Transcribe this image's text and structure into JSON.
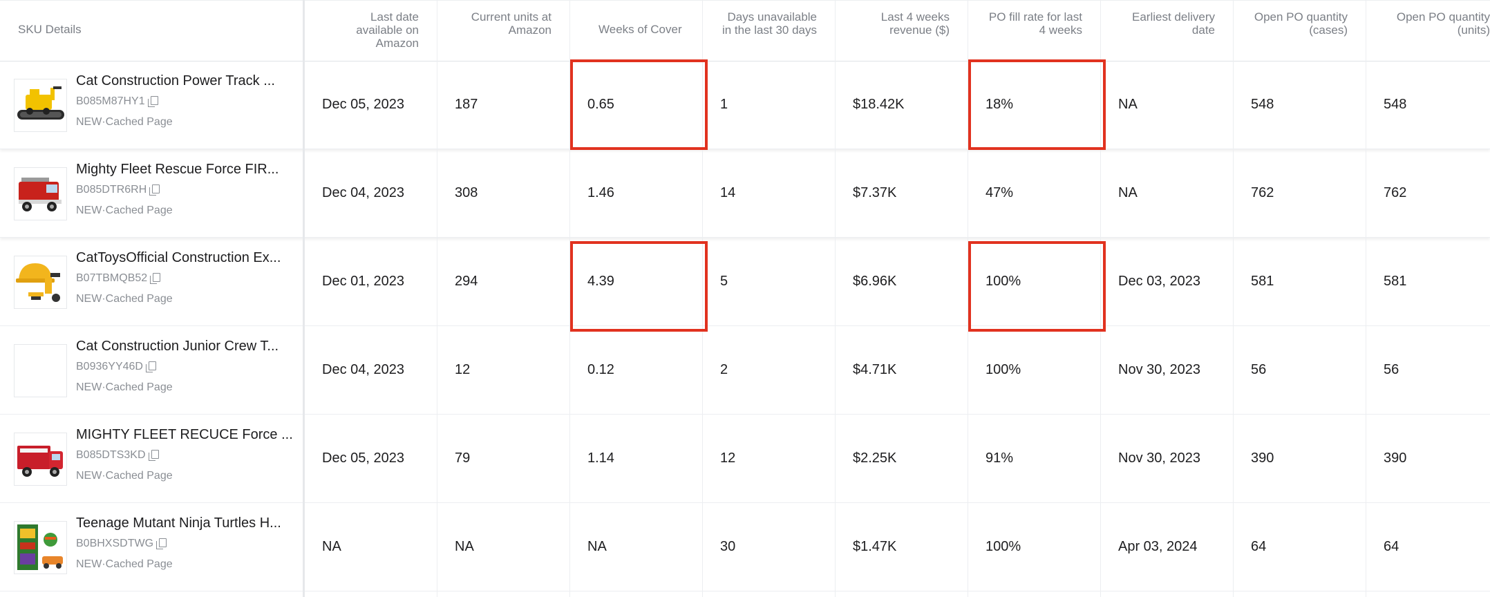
{
  "columns": [
    "SKU Details",
    "Last date available on Amazon",
    "Current units at Amazon",
    "Weeks of Cover",
    "Days unavailable in the last 30 days",
    "Last 4 weeks revenue ($)",
    "PO fill rate for last 4 weeks",
    "Earliest delivery date",
    "Open PO quantity (cases)",
    "Open PO quantity (units)"
  ],
  "rows": [
    {
      "title": "Cat Construction Power Track ...",
      "asin": "B085M87HY1",
      "status": "NEW·Cached Page",
      "image": "toy-train-track-thumbnail",
      "last_date": "Dec 05, 2023",
      "units": "187",
      "weeks_cover": "0.65",
      "days_unavailable": "1",
      "revenue": "$18.42K",
      "fill_rate": "18%",
      "delivery": "NA",
      "po_cases": "548",
      "po_units": "548"
    },
    {
      "title": "Mighty Fleet Rescue Force FIR...",
      "asin": "B085DTR6RH",
      "status": "NEW·Cached Page",
      "image": "fire-truck-thumbnail",
      "last_date": "Dec 04, 2023",
      "units": "308",
      "weeks_cover": "1.46",
      "days_unavailable": "14",
      "revenue": "$7.37K",
      "fill_rate": "47%",
      "delivery": "NA",
      "po_cases": "762",
      "po_units": "762"
    },
    {
      "title": "CatToysOfficial Construction Ex...",
      "asin": "B07TBMQB52",
      "status": "NEW·Cached Page",
      "image": "construction-helmet-thumbnail",
      "last_date": "Dec 01, 2023",
      "units": "294",
      "weeks_cover": "4.39",
      "days_unavailable": "5",
      "revenue": "$6.96K",
      "fill_rate": "100%",
      "delivery": "Dec 03, 2023",
      "po_cases": "581",
      "po_units": "581"
    },
    {
      "title": "Cat Construction Junior Crew T...",
      "asin": "B0936YY46D",
      "status": "NEW·Cached Page",
      "image": "blank-thumbnail",
      "last_date": "Dec 04, 2023",
      "units": "12",
      "weeks_cover": "0.12",
      "days_unavailable": "2",
      "revenue": "$4.71K",
      "fill_rate": "100%",
      "delivery": "Nov 30, 2023",
      "po_cases": "56",
      "po_units": "56"
    },
    {
      "title": "MIGHTY FLEET RECUCE Force ...",
      "asin": "B085DTS3KD",
      "status": "NEW·Cached Page",
      "image": "rescue-truck-thumbnail",
      "last_date": "Dec 05, 2023",
      "units": "79",
      "weeks_cover": "1.14",
      "days_unavailable": "12",
      "revenue": "$2.25K",
      "fill_rate": "91%",
      "delivery": "Nov 30, 2023",
      "po_cases": "390",
      "po_units": "390"
    },
    {
      "title": "Teenage Mutant Ninja Turtles H...",
      "asin": "B0BHXSDTWG",
      "status": "NEW·Cached Page",
      "image": "ninja-turtles-box-thumbnail",
      "last_date": "NA",
      "units": "NA",
      "weeks_cover": "NA",
      "days_unavailable": "30",
      "revenue": "$1.47K",
      "fill_rate": "100%",
      "delivery": "Apr 03, 2024",
      "po_cases": "64",
      "po_units": "64"
    }
  ],
  "highlight_color": "#e1321f",
  "icons": {
    "copy": "copy-icon"
  }
}
